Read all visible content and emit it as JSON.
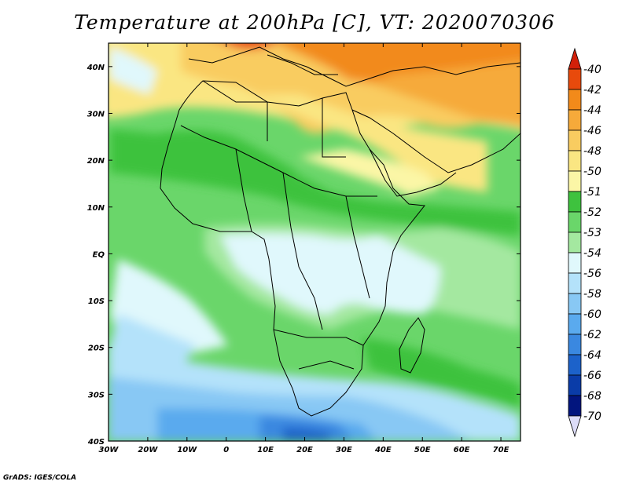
{
  "title": "Temperature at 200hPa [C], VT: 2020070306",
  "credit": "GrADS: IGES/COLA",
  "map": {
    "lon_range": [
      -30,
      75
    ],
    "lat_range": [
      -40,
      45
    ],
    "lon_ticks": [
      {
        "value": -30,
        "label": "30W"
      },
      {
        "value": -20,
        "label": "20W"
      },
      {
        "value": -10,
        "label": "10W"
      },
      {
        "value": 0,
        "label": "0"
      },
      {
        "value": 10,
        "label": "10E"
      },
      {
        "value": 20,
        "label": "20E"
      },
      {
        "value": 30,
        "label": "30E"
      },
      {
        "value": 40,
        "label": "40E"
      },
      {
        "value": 50,
        "label": "50E"
      },
      {
        "value": 60,
        "label": "60E"
      },
      {
        "value": 70,
        "label": "70E"
      }
    ],
    "lat_ticks": [
      {
        "value": 40,
        "label": "40N"
      },
      {
        "value": 30,
        "label": "30N"
      },
      {
        "value": 20,
        "label": "20N"
      },
      {
        "value": 10,
        "label": "10N"
      },
      {
        "value": 0,
        "label": "EQ"
      },
      {
        "value": -10,
        "label": "10S"
      },
      {
        "value": -20,
        "label": "20S"
      },
      {
        "value": -30,
        "label": "30S"
      },
      {
        "value": -40,
        "label": "40S"
      }
    ]
  },
  "colorbar": {
    "levels": [
      "-40",
      "-42",
      "-44",
      "-46",
      "-48",
      "-50",
      "-51",
      "-52",
      "-53",
      "-54",
      "-56",
      "-58",
      "-60",
      "-62",
      "-64",
      "-66",
      "-68",
      "-70"
    ],
    "colors": [
      "#d2200a",
      "#e84a0c",
      "#f28a1a",
      "#f6aa3a",
      "#f9cc60",
      "#fae682",
      "#fbf6a6",
      "#3ec23e",
      "#6ad66a",
      "#a4e8a0",
      "#e0f8fc",
      "#b4e2fa",
      "#88c8f4",
      "#5aaaee",
      "#3a88e0",
      "#1c62ca",
      "#0a3ca8",
      "#02157e",
      "#dcdcf8"
    ]
  }
}
